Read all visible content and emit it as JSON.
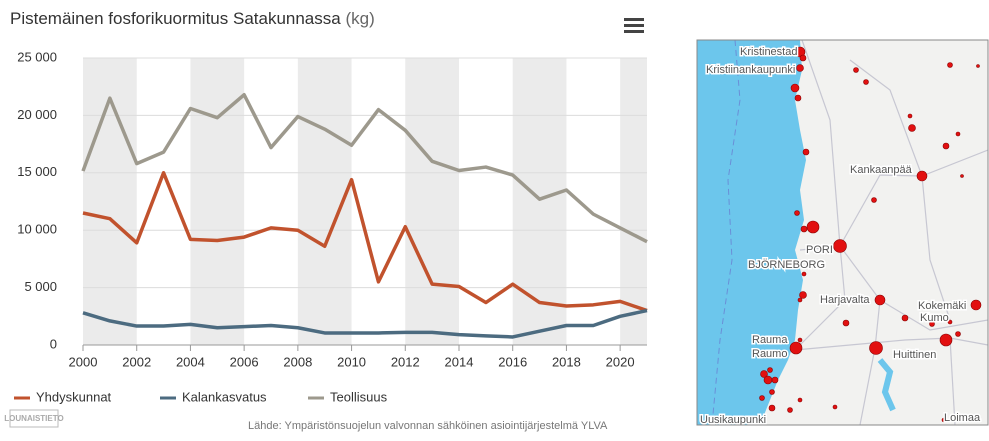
{
  "chart_data": {
    "type": "line",
    "title": "Pistemäinen fosforikuormitus Satakunnassa",
    "title_unit": "(kg)",
    "x": [
      2000,
      2001,
      2002,
      2003,
      2004,
      2005,
      2006,
      2007,
      2008,
      2009,
      2010,
      2011,
      2012,
      2013,
      2014,
      2015,
      2016,
      2017,
      2018,
      2019,
      2020,
      2021
    ],
    "xlim": [
      2000,
      2021
    ],
    "xticks": [
      2000,
      2002,
      2004,
      2006,
      2008,
      2010,
      2012,
      2014,
      2016,
      2018,
      2020
    ],
    "ylim": [
      0,
      25000
    ],
    "yticks": [
      0,
      {
        "value": 5000,
        "label": "5 000"
      },
      {
        "value": 10000,
        "label": "10 000"
      },
      {
        "value": 15000,
        "label": "15 000"
      },
      {
        "value": 20000,
        "label": "20 000"
      },
      {
        "value": 25000,
        "label": "25 000"
      }
    ],
    "grid": true,
    "series": [
      {
        "name": "Yhdyskunnat",
        "color": "#c1522d",
        "values": [
          11500,
          11000,
          8900,
          15000,
          9200,
          9100,
          9400,
          10200,
          10000,
          8600,
          14400,
          5500,
          10300,
          5300,
          5100,
          3700,
          5300,
          3700,
          3400,
          3500,
          3800,
          3000
        ]
      },
      {
        "name": "Kalankasvatus",
        "color": "#4c6b80",
        "values": [
          2800,
          2100,
          1650,
          1650,
          1800,
          1500,
          1600,
          1700,
          1500,
          1050,
          1050,
          1050,
          1100,
          1100,
          900,
          800,
          700,
          1200,
          1700,
          1700,
          2500,
          3000
        ]
      },
      {
        "name": "Teollisuus",
        "color": "#9d998d",
        "values": [
          15150,
          21500,
          15800,
          16800,
          20600,
          19800,
          21800,
          17200,
          19900,
          18800,
          17400,
          20500,
          18700,
          16000,
          15200,
          15500,
          14800,
          12700,
          13500,
          11400,
          10200,
          9000
        ]
      }
    ],
    "source": "Lähde: Ympäristönsuojelun valvonnan sähköinen asiointijärjestelmä YLVA",
    "logo": "LOUNAISTIETO"
  },
  "map": {
    "labels": [
      "Kristinestad",
      "Kristiinankaupunki",
      "Kankaanpää",
      "PORI",
      "BJÖRNEBORG",
      "Harjavalta",
      "Kokemäki",
      "Kumo",
      "Rauma",
      "Raumo",
      "Huittinen",
      "Uusikaupunki",
      "Loimaa"
    ]
  }
}
